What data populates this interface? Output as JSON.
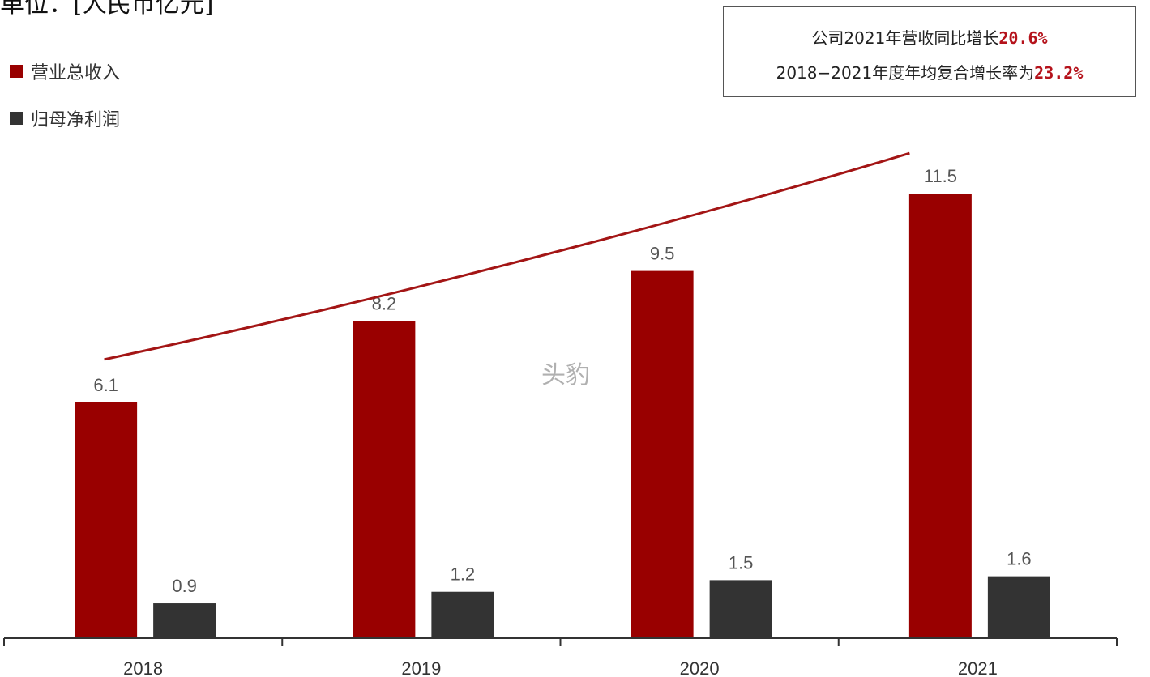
{
  "unit_label": "单位：[人民币亿元]",
  "watermark": "头豹",
  "annotation": {
    "line1_prefix": "公司2021年营收同比增长",
    "line1_value": "20.6%",
    "line2_prefix": "2018−2021年度年均复合增长率为",
    "line2_value": "23.2%"
  },
  "colors": {
    "revenue": "#990000",
    "net_profit": "#333333",
    "trend_line": "#a31515",
    "axis": "#333333"
  },
  "chart_data": {
    "type": "bar",
    "categories": [
      "2018",
      "2019",
      "2020",
      "2021"
    ],
    "series": [
      {
        "name": "营业总收入",
        "values": [
          6.1,
          8.2,
          9.5,
          11.5
        ],
        "labels": [
          "6.1",
          "8.2",
          "9.5",
          "11.5"
        ]
      },
      {
        "name": "归母净利润",
        "values": [
          0.9,
          1.2,
          1.5,
          1.6
        ],
        "labels": [
          "0.9",
          "1.2",
          "1.5",
          "1.6"
        ]
      }
    ],
    "ylim": [
      0,
      13.2
    ],
    "grid": false,
    "legend_placement": "top-left",
    "trend_line": "curved red line above revenue bars"
  }
}
